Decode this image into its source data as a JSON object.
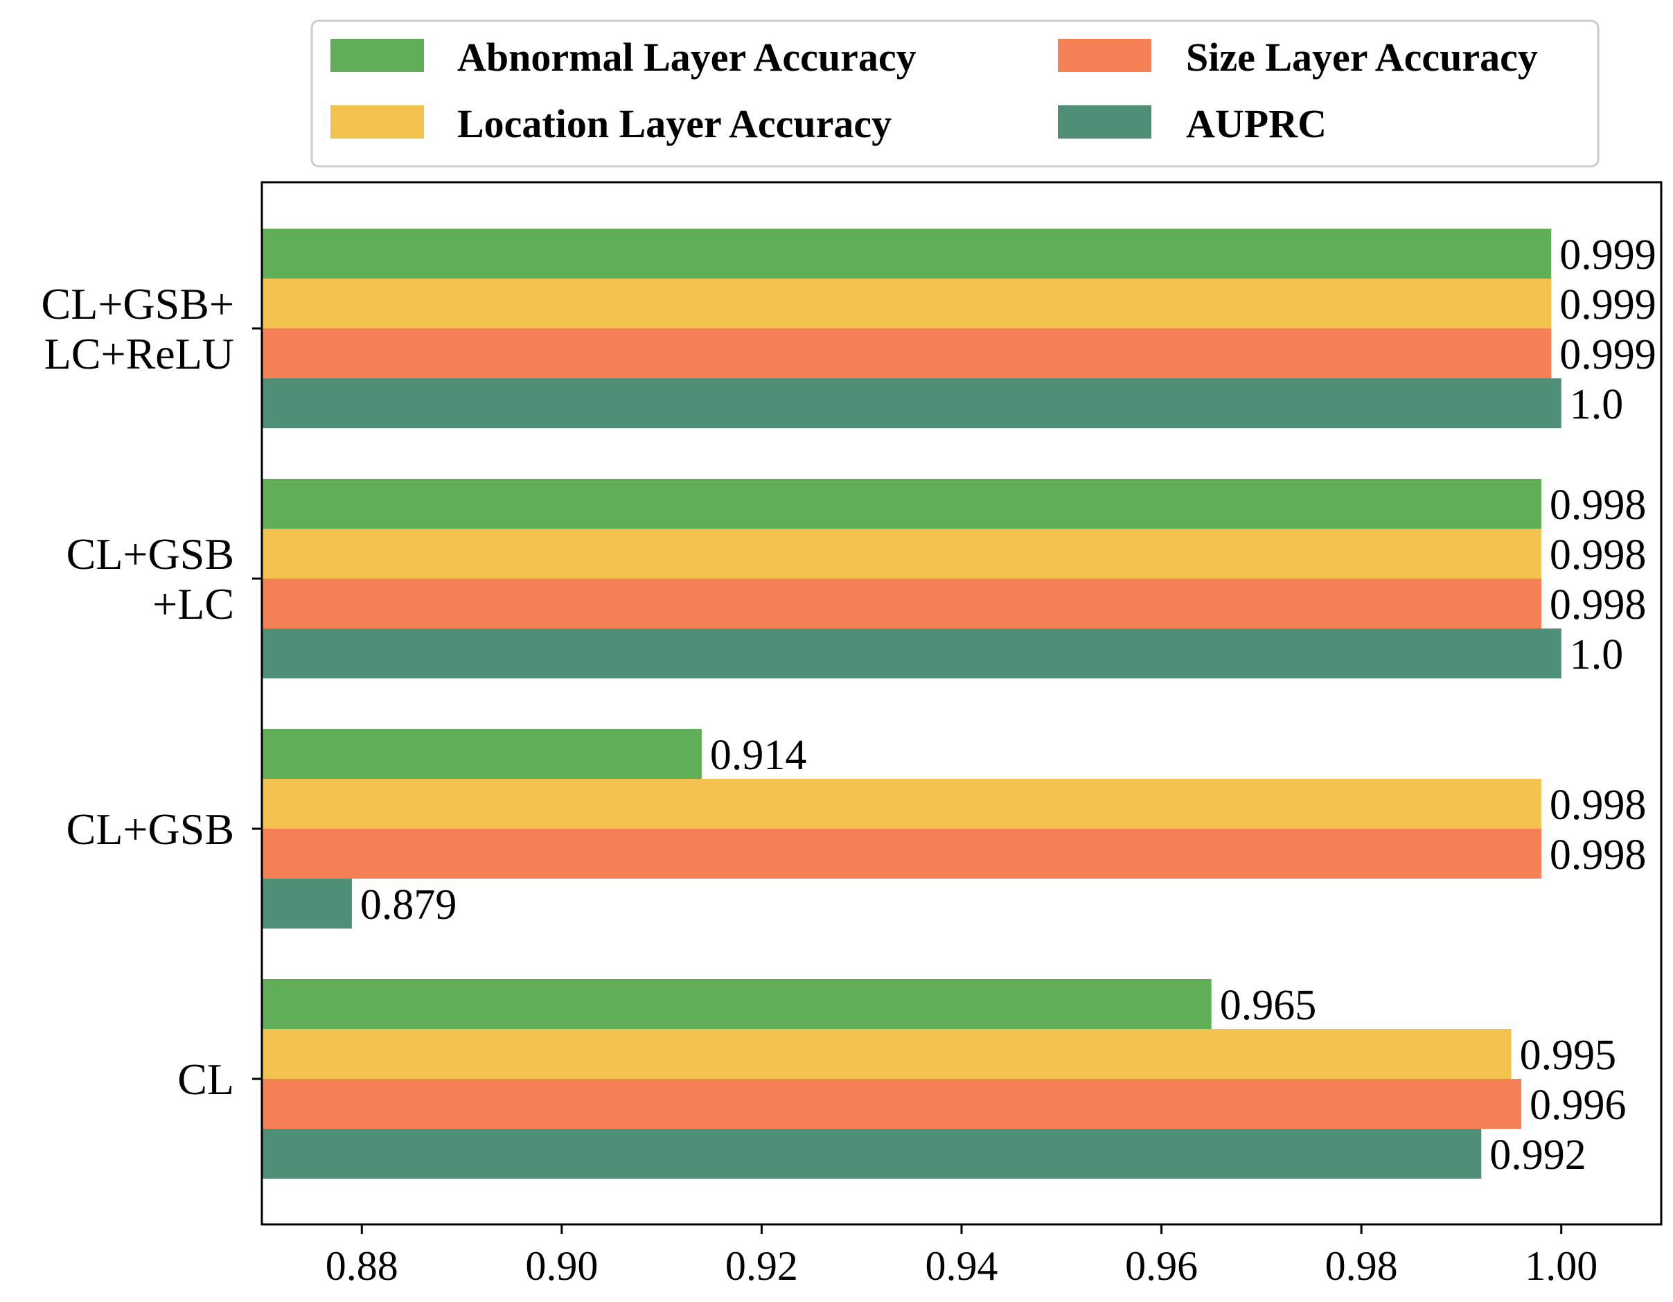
{
  "chart_data": {
    "type": "bar",
    "orientation": "horizontal",
    "title": "",
    "xlabel": "",
    "ylabel": "",
    "xlim": [
      0.87,
      1.01
    ],
    "xticks": [
      0.88,
      0.9,
      0.92,
      0.94,
      0.96,
      0.98,
      1.0
    ],
    "xtick_labels": [
      "0.88",
      "0.90",
      "0.92",
      "0.94",
      "0.96",
      "0.98",
      "1.00"
    ],
    "grid": false,
    "legend_position": "top",
    "categories": [
      [
        "CL+GSB+",
        "LC+ReLU"
      ],
      [
        "CL+GSB",
        "+LC"
      ],
      [
        "CL+GSB"
      ],
      [
        "CL"
      ]
    ],
    "series": [
      {
        "name": "Abnormal Layer Accuracy",
        "color": "#62ad57",
        "values": [
          0.999,
          0.998,
          0.914,
          0.965
        ],
        "labels": [
          "0.999",
          "0.998",
          "0.914",
          "0.965"
        ]
      },
      {
        "name": "Location Layer Accuracy",
        "color": "#f2c14e",
        "values": [
          0.999,
          0.998,
          0.998,
          0.995
        ],
        "labels": [
          "0.999",
          "0.998",
          "0.998",
          "0.995"
        ]
      },
      {
        "name": "Size Layer Accuracy",
        "color": "#f68055",
        "values": [
          0.999,
          0.998,
          0.998,
          0.996
        ],
        "labels": [
          "0.999",
          "0.998",
          "0.998",
          "0.996"
        ]
      },
      {
        "name": "AUPRC",
        "color": "#4e8f75",
        "values": [
          1.0,
          1.0,
          0.879,
          0.992
        ],
        "labels": [
          "1.0",
          "1.0",
          "0.879",
          "0.992"
        ]
      }
    ]
  }
}
